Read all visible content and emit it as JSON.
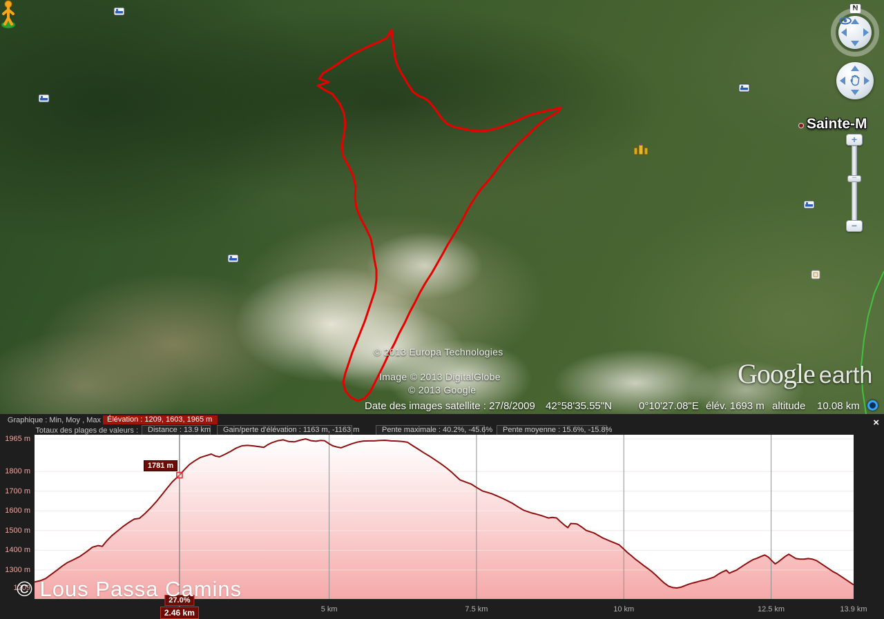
{
  "map": {
    "place_label": "Sainte-M",
    "copyright_lines": [
      "© 2013 Europa Technologies",
      "Image © 2013 DigitalGlobe",
      "© 2013 Google"
    ],
    "logo": {
      "google": "Google",
      "earth": "earth"
    },
    "status_bar": {
      "imagery_date": "Date des images satellite : 27/8/2009",
      "latitude": "42°58'35.55\"N",
      "longitude": "0°10'27.08\"E",
      "elevation": "élév. 1693 m",
      "altitude_label": "altitude",
      "altitude_value": "10.08 km"
    },
    "nav": {
      "north_label": "N",
      "zoom_in": "+",
      "zoom_out": "−"
    },
    "icon_names": [
      "lodging-icon",
      "lodging-icon",
      "lodging-icon",
      "lodging-icon",
      "lodging-icon",
      "landmark-icon",
      "photo-icon",
      "pegman-icon",
      "look-joystick-icon",
      "move-joystick-icon",
      "eye-icon",
      "hand-icon",
      "streaming-indicator-icon"
    ]
  },
  "chart": {
    "close_label": "×",
    "header": {
      "row1_label": "Graphique : Min, Moy , Max",
      "row1_value": "Élévation : 1209, 1603, 1965 m",
      "row2_label": "Totaux des plages de valeurs :",
      "row2_boxes": [
        "Distance : 13.9 km",
        "Gain/perte d'élévation : 1163 m, -1163 m",
        "Pente maximale : 40.2%, -45.6%",
        "Pente moyenne : 15.6%, -15.8%"
      ]
    },
    "watermark": "© Lous Passa Camins",
    "cursor": {
      "km": 2.46,
      "elev": 1781,
      "elevation_label": "1781 m",
      "slope_label": "27.0%",
      "distance_label": "2.46 km"
    },
    "colors": {
      "line": "#8f0f0f",
      "fill_top": "#ffffff",
      "fill_mid": "#fbdada",
      "fill_bottom": "#f5a9a9",
      "panel_bg": "#1e1e1e",
      "highlight_box": "#9e1408",
      "track_red": "#e80000",
      "track_green": "#3ecb3e"
    }
  },
  "chart_data": {
    "type": "area",
    "title": "",
    "xlabel": "distance (km)",
    "ylabel": "élévation (m)",
    "xlim": [
      0,
      13.9
    ],
    "ylim": [
      1209,
      1965
    ],
    "x_ticks": [
      {
        "km": 5,
        "label": "5 km",
        "grid": true
      },
      {
        "km": 7.5,
        "label": "7.5 km",
        "grid": true
      },
      {
        "km": 10,
        "label": "10 km",
        "grid": true
      },
      {
        "km": 12.5,
        "label": "12.5 km",
        "grid": true
      },
      {
        "km": 13.9,
        "label": "13.9 km",
        "grid": false
      }
    ],
    "y_ticks": [
      {
        "m": 1965,
        "label": "1965 m",
        "grid": true
      },
      {
        "m": 1800,
        "label": "1800 m",
        "grid": true
      },
      {
        "m": 1700,
        "label": "1700 m",
        "grid": true
      },
      {
        "m": 1600,
        "label": "1600 m",
        "grid": true
      },
      {
        "m": 1500,
        "label": "1500 m",
        "grid": true
      },
      {
        "m": 1400,
        "label": "1400 m",
        "grid": true
      },
      {
        "m": 1300,
        "label": "1300 m",
        "grid": true
      },
      {
        "m": 1209,
        "label": "1209",
        "grid": false
      }
    ],
    "series": [
      {
        "name": "elevation_profile",
        "points": [
          [
            0.0,
            1239
          ],
          [
            0.1,
            1246
          ],
          [
            0.19,
            1257
          ],
          [
            0.28,
            1277
          ],
          [
            0.38,
            1299
          ],
          [
            0.47,
            1320
          ],
          [
            0.56,
            1338
          ],
          [
            0.66,
            1352
          ],
          [
            0.77,
            1369
          ],
          [
            0.88,
            1392
          ],
          [
            0.98,
            1415
          ],
          [
            1.08,
            1424
          ],
          [
            1.15,
            1420
          ],
          [
            1.22,
            1446
          ],
          [
            1.31,
            1474
          ],
          [
            1.41,
            1498
          ],
          [
            1.5,
            1520
          ],
          [
            1.6,
            1541
          ],
          [
            1.69,
            1558
          ],
          [
            1.78,
            1562
          ],
          [
            1.88,
            1588
          ],
          [
            1.97,
            1615
          ],
          [
            2.07,
            1648
          ],
          [
            2.16,
            1681
          ],
          [
            2.25,
            1715
          ],
          [
            2.34,
            1748
          ],
          [
            2.46,
            1781
          ],
          [
            2.54,
            1808
          ],
          [
            2.63,
            1835
          ],
          [
            2.72,
            1854
          ],
          [
            2.81,
            1870
          ],
          [
            2.91,
            1880
          ],
          [
            3.0,
            1888
          ],
          [
            3.07,
            1878
          ],
          [
            3.14,
            1874
          ],
          [
            3.24,
            1888
          ],
          [
            3.33,
            1902
          ],
          [
            3.42,
            1918
          ],
          [
            3.52,
            1930
          ],
          [
            3.61,
            1932
          ],
          [
            3.7,
            1930
          ],
          [
            3.8,
            1926
          ],
          [
            3.89,
            1922
          ],
          [
            3.96,
            1936
          ],
          [
            4.03,
            1946
          ],
          [
            4.13,
            1956
          ],
          [
            4.22,
            1960
          ],
          [
            4.31,
            1952
          ],
          [
            4.41,
            1950
          ],
          [
            4.5,
            1958
          ],
          [
            4.6,
            1965
          ],
          [
            4.69,
            1956
          ],
          [
            4.78,
            1953
          ],
          [
            4.85,
            1957
          ],
          [
            4.92,
            1956
          ],
          [
            4.99,
            1942
          ],
          [
            5.06,
            1930
          ],
          [
            5.13,
            1924
          ],
          [
            5.2,
            1920
          ],
          [
            5.3,
            1931
          ],
          [
            5.39,
            1941
          ],
          [
            5.48,
            1949
          ],
          [
            5.58,
            1954
          ],
          [
            5.68,
            1955
          ],
          [
            5.77,
            1955
          ],
          [
            5.86,
            1957
          ],
          [
            5.95,
            1958
          ],
          [
            6.05,
            1955
          ],
          [
            6.14,
            1954
          ],
          [
            6.24,
            1952
          ],
          [
            6.33,
            1948
          ],
          [
            6.42,
            1930
          ],
          [
            6.52,
            1911
          ],
          [
            6.61,
            1894
          ],
          [
            6.71,
            1876
          ],
          [
            6.8,
            1858
          ],
          [
            6.89,
            1840
          ],
          [
            6.99,
            1818
          ],
          [
            7.08,
            1796
          ],
          [
            7.15,
            1776
          ],
          [
            7.22,
            1757
          ],
          [
            7.31,
            1747
          ],
          [
            7.41,
            1736
          ],
          [
            7.5,
            1719
          ],
          [
            7.6,
            1701
          ],
          [
            7.68,
            1694
          ],
          [
            7.76,
            1687
          ],
          [
            7.84,
            1677
          ],
          [
            7.92,
            1666
          ],
          [
            8.02,
            1652
          ],
          [
            8.11,
            1638
          ],
          [
            8.2,
            1621
          ],
          [
            8.3,
            1603
          ],
          [
            8.37,
            1596
          ],
          [
            8.44,
            1589
          ],
          [
            8.51,
            1584
          ],
          [
            8.58,
            1578
          ],
          [
            8.65,
            1571
          ],
          [
            8.72,
            1564
          ],
          [
            8.79,
            1567
          ],
          [
            8.86,
            1564
          ],
          [
            8.93,
            1544
          ],
          [
            9.0,
            1526
          ],
          [
            9.05,
            1515
          ],
          [
            9.1,
            1536
          ],
          [
            9.16,
            1535
          ],
          [
            9.21,
            1533
          ],
          [
            9.29,
            1517
          ],
          [
            9.36,
            1501
          ],
          [
            9.43,
            1494
          ],
          [
            9.5,
            1487
          ],
          [
            9.57,
            1475
          ],
          [
            9.64,
            1463
          ],
          [
            9.71,
            1454
          ],
          [
            9.78,
            1445
          ],
          [
            9.85,
            1437
          ],
          [
            9.92,
            1428
          ],
          [
            9.99,
            1409
          ],
          [
            10.06,
            1389
          ],
          [
            10.13,
            1372
          ],
          [
            10.2,
            1354
          ],
          [
            10.27,
            1338
          ],
          [
            10.34,
            1322
          ],
          [
            10.41,
            1307
          ],
          [
            10.48,
            1291
          ],
          [
            10.55,
            1272
          ],
          [
            10.62,
            1252
          ],
          [
            10.69,
            1233
          ],
          [
            10.76,
            1218
          ],
          [
            10.83,
            1211
          ],
          [
            10.9,
            1209
          ],
          [
            10.97,
            1213
          ],
          [
            11.04,
            1221
          ],
          [
            11.11,
            1229
          ],
          [
            11.18,
            1235
          ],
          [
            11.25,
            1240
          ],
          [
            11.32,
            1246
          ],
          [
            11.39,
            1250
          ],
          [
            11.46,
            1257
          ],
          [
            11.53,
            1264
          ],
          [
            11.6,
            1278
          ],
          [
            11.67,
            1290
          ],
          [
            11.74,
            1299
          ],
          [
            11.79,
            1284
          ],
          [
            11.85,
            1292
          ],
          [
            11.91,
            1299
          ],
          [
            11.98,
            1313
          ],
          [
            12.05,
            1327
          ],
          [
            12.12,
            1340
          ],
          [
            12.19,
            1352
          ],
          [
            12.26,
            1360
          ],
          [
            12.33,
            1369
          ],
          [
            12.39,
            1376
          ],
          [
            12.45,
            1366
          ],
          [
            12.51,
            1348
          ],
          [
            12.57,
            1331
          ],
          [
            12.62,
            1341
          ],
          [
            12.68,
            1355
          ],
          [
            12.74,
            1369
          ],
          [
            12.8,
            1380
          ],
          [
            12.86,
            1369
          ],
          [
            12.92,
            1358
          ],
          [
            12.99,
            1355
          ],
          [
            13.06,
            1355
          ],
          [
            13.13,
            1358
          ],
          [
            13.2,
            1355
          ],
          [
            13.27,
            1348
          ],
          [
            13.34,
            1334
          ],
          [
            13.41,
            1320
          ],
          [
            13.48,
            1306
          ],
          [
            13.55,
            1292
          ],
          [
            13.62,
            1281
          ],
          [
            13.69,
            1267
          ],
          [
            13.76,
            1253
          ],
          [
            13.83,
            1239
          ],
          [
            13.9,
            1225
          ]
        ]
      }
    ],
    "stats": {
      "elevation_min_mean_max_m": [
        1209,
        1603,
        1965
      ],
      "distance_km": 13.9,
      "gain_loss_m": [
        1163,
        -1163
      ],
      "max_slope_pct": [
        40.2,
        -45.6
      ],
      "mean_slope_pct": [
        15.6,
        -15.8
      ]
    }
  }
}
